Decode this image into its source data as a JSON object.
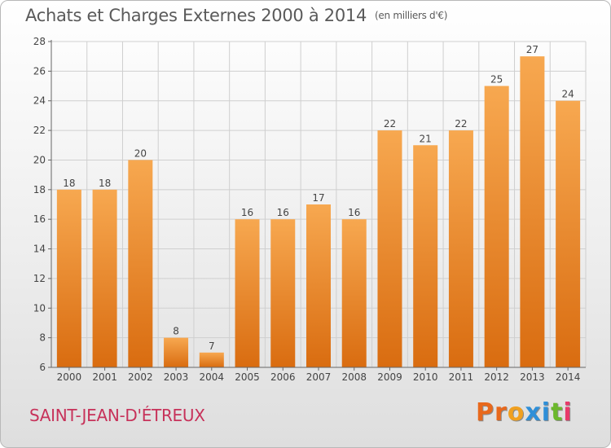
{
  "title": "Achats et Charges Externes 2000 à 2014",
  "unit": "(en milliers d'€)",
  "commune": "SAINT-JEAN-D'ÉTREUX",
  "logo": {
    "letters": [
      "P",
      "r",
      "o",
      "x",
      "i",
      "t",
      "i"
    ],
    "colors": [
      "#e8681c",
      "#e8681c",
      "#f0a020",
      "#2f8fd8",
      "#2f8fd8",
      "#6cb82c",
      "#e83a6a"
    ]
  },
  "colors": {
    "bar_light": "#f7a850",
    "bar_dark": "#d96c10",
    "grid": "#cfcfcf",
    "text": "#444444"
  },
  "chart_data": {
    "type": "bar",
    "title": "Achats et Charges Externes 2000 à 2014",
    "subtitle": "(en milliers d'€)",
    "categories": [
      "2000",
      "2001",
      "2002",
      "2003",
      "2004",
      "2005",
      "2006",
      "2007",
      "2008",
      "2009",
      "2010",
      "2011",
      "2012",
      "2013",
      "2014"
    ],
    "values": [
      18,
      18,
      20,
      8,
      7,
      16,
      16,
      17,
      16,
      22,
      21,
      22,
      25,
      27,
      24
    ],
    "ylim": [
      6,
      28
    ],
    "yticks": [
      6,
      8,
      10,
      12,
      14,
      16,
      18,
      20,
      22,
      24,
      26,
      28
    ],
    "grid": true,
    "data_labels": true
  }
}
